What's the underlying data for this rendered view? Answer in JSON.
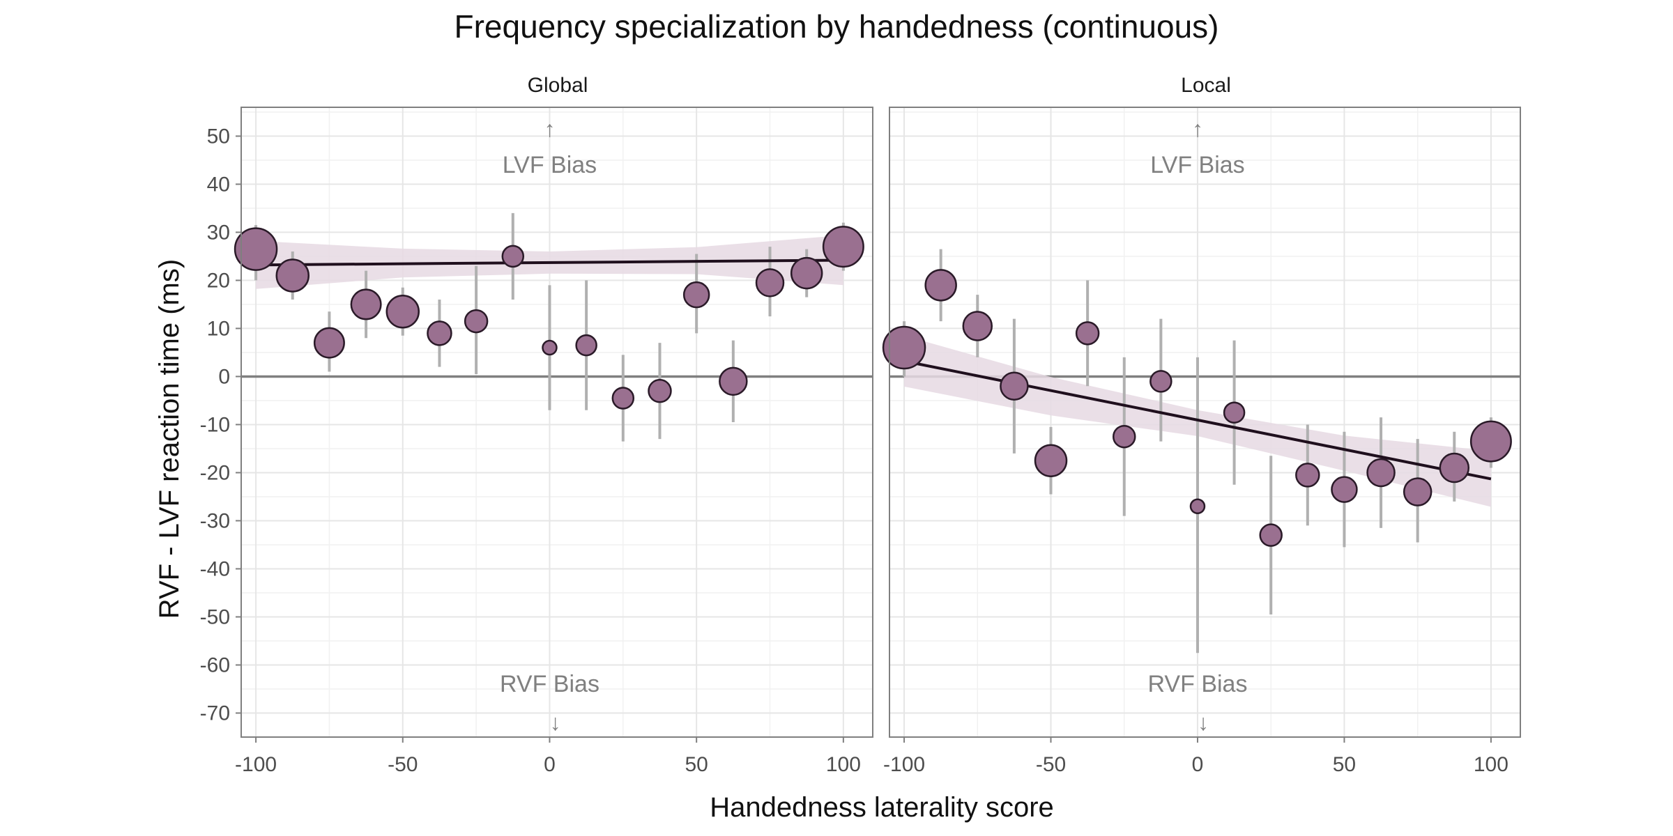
{
  "chart_data": {
    "type": "scatter",
    "title": "Frequency specialization by handedness (continuous)",
    "xlabel": "Handedness laterality score",
    "ylabel": "RVF - LVF reaction time (ms)",
    "xlim": [
      -105,
      110
    ],
    "ylim": [
      -75,
      56
    ],
    "x_ticks": [
      -100,
      -50,
      0,
      50,
      100
    ],
    "y_ticks": [
      50,
      40,
      30,
      20,
      10,
      0,
      -10,
      -20,
      -30,
      -40,
      -50,
      -60,
      -70
    ],
    "x_tick_labels": [
      "-100",
      "-50",
      "0",
      "50",
      "100"
    ],
    "y_tick_labels": [
      "50",
      "40",
      "30",
      "20",
      "10",
      "0",
      "-10",
      "-20",
      "-30",
      "-40",
      "-50",
      "-60",
      "-70"
    ],
    "reference_line_y": 0,
    "grid": true,
    "colors": {
      "point_fill": "#9a7090",
      "point_stroke": "#2a1a28",
      "error_bar": "#b0b0b0",
      "fit_line": "#1f0f1d",
      "ribbon": "#e6d9e3",
      "zero_line": "#7f7f7f"
    },
    "annotations": {
      "top": "LVF Bias",
      "bottom": "RVF Bias",
      "up_arrow": "↑",
      "down_arrow": "↓"
    },
    "panels": [
      {
        "facet": "Global",
        "fit": {
          "x": [
            -100,
            100
          ],
          "y": [
            23.2,
            24.2
          ]
        },
        "ribbon": {
          "x": [
            -100,
            -50,
            0,
            50,
            100
          ],
          "upper": [
            28.2,
            26.6,
            26.0,
            26.9,
            29.4
          ],
          "lower": [
            18.2,
            20.6,
            21.4,
            21.3,
            19.0
          ]
        },
        "points": [
          {
            "x": -100,
            "y": 26.5,
            "lo": 20.0,
            "hi": 31.5,
            "size": 1.0
          },
          {
            "x": -87.5,
            "y": 21.0,
            "lo": 16.0,
            "hi": 26.0,
            "size": 0.72
          },
          {
            "x": -75,
            "y": 7.0,
            "lo": 1.0,
            "hi": 13.5,
            "size": 0.65
          },
          {
            "x": -62.5,
            "y": 15.0,
            "lo": 8.0,
            "hi": 22.0,
            "size": 0.65
          },
          {
            "x": -50,
            "y": 13.5,
            "lo": 8.5,
            "hi": 18.5,
            "size": 0.72
          },
          {
            "x": -37.5,
            "y": 9.0,
            "lo": 2.0,
            "hi": 16.0,
            "size": 0.48
          },
          {
            "x": -25,
            "y": 11.5,
            "lo": 0.5,
            "hi": 23.0,
            "size": 0.44
          },
          {
            "x": -12.5,
            "y": 25.0,
            "lo": 16.0,
            "hi": 34.0,
            "size": 0.4
          },
          {
            "x": 0,
            "y": 6.0,
            "lo": -7.0,
            "hi": 19.0,
            "size": 0.2
          },
          {
            "x": 12.5,
            "y": 6.5,
            "lo": -7.0,
            "hi": 20.0,
            "size": 0.38
          },
          {
            "x": 25,
            "y": -4.5,
            "lo": -13.5,
            "hi": 4.5,
            "size": 0.4
          },
          {
            "x": 37.5,
            "y": -3.0,
            "lo": -13.0,
            "hi": 7.0,
            "size": 0.44
          },
          {
            "x": 50,
            "y": 17.0,
            "lo": 9.0,
            "hi": 25.5,
            "size": 0.52
          },
          {
            "x": 62.5,
            "y": -1.0,
            "lo": -9.5,
            "hi": 7.5,
            "size": 0.58
          },
          {
            "x": 75,
            "y": 19.5,
            "lo": 12.5,
            "hi": 27.0,
            "size": 0.58
          },
          {
            "x": 87.5,
            "y": 21.5,
            "lo": 16.5,
            "hi": 26.5,
            "size": 0.68
          },
          {
            "x": 100,
            "y": 27.0,
            "lo": 22.0,
            "hi": 32.0,
            "size": 0.95
          }
        ]
      },
      {
        "facet": "Local",
        "fit": {
          "x": [
            -100,
            100
          ],
          "y": [
            3.2,
            -21.3
          ]
        },
        "ribbon": {
          "x": [
            -100,
            -50,
            0,
            50,
            100
          ],
          "upper": [
            8.5,
            -0.1,
            -7.0,
            -12.3,
            -15.5
          ],
          "lower": [
            -2.1,
            -8.1,
            -12.4,
            -19.6,
            -27.1
          ]
        },
        "points": [
          {
            "x": -100,
            "y": 6.0,
            "lo": 0.0,
            "hi": 11.5,
            "size": 1.0
          },
          {
            "x": -87.5,
            "y": 19.0,
            "lo": 11.5,
            "hi": 26.5,
            "size": 0.68
          },
          {
            "x": -75,
            "y": 10.5,
            "lo": 4.0,
            "hi": 17.0,
            "size": 0.62
          },
          {
            "x": -62.5,
            "y": -2.0,
            "lo": -16.0,
            "hi": 12.0,
            "size": 0.58
          },
          {
            "x": -50,
            "y": -17.5,
            "lo": -24.5,
            "hi": -10.5,
            "size": 0.7
          },
          {
            "x": -37.5,
            "y": 9.0,
            "lo": -2.0,
            "hi": 20.0,
            "size": 0.44
          },
          {
            "x": -25,
            "y": -12.5,
            "lo": -29.0,
            "hi": 4.0,
            "size": 0.42
          },
          {
            "x": -12.5,
            "y": -1.0,
            "lo": -13.5,
            "hi": 12.0,
            "size": 0.4
          },
          {
            "x": 0,
            "y": -27.0,
            "lo": -57.5,
            "hi": 4.0,
            "size": 0.2
          },
          {
            "x": 12.5,
            "y": -7.5,
            "lo": -22.5,
            "hi": 7.5,
            "size": 0.38
          },
          {
            "x": 25,
            "y": -33.0,
            "lo": -49.5,
            "hi": -16.5,
            "size": 0.42
          },
          {
            "x": 37.5,
            "y": -20.5,
            "lo": -31.0,
            "hi": -10.0,
            "size": 0.46
          },
          {
            "x": 50,
            "y": -23.5,
            "lo": -35.5,
            "hi": -11.5,
            "size": 0.52
          },
          {
            "x": 62.5,
            "y": -20.0,
            "lo": -31.5,
            "hi": -8.5,
            "size": 0.58
          },
          {
            "x": 75,
            "y": -24.0,
            "lo": -34.5,
            "hi": -13.0,
            "size": 0.58
          },
          {
            "x": 87.5,
            "y": -19.0,
            "lo": -26.0,
            "hi": -11.5,
            "size": 0.62
          },
          {
            "x": 100,
            "y": -13.5,
            "lo": -19.0,
            "hi": -8.5,
            "size": 0.95
          }
        ]
      }
    ]
  }
}
